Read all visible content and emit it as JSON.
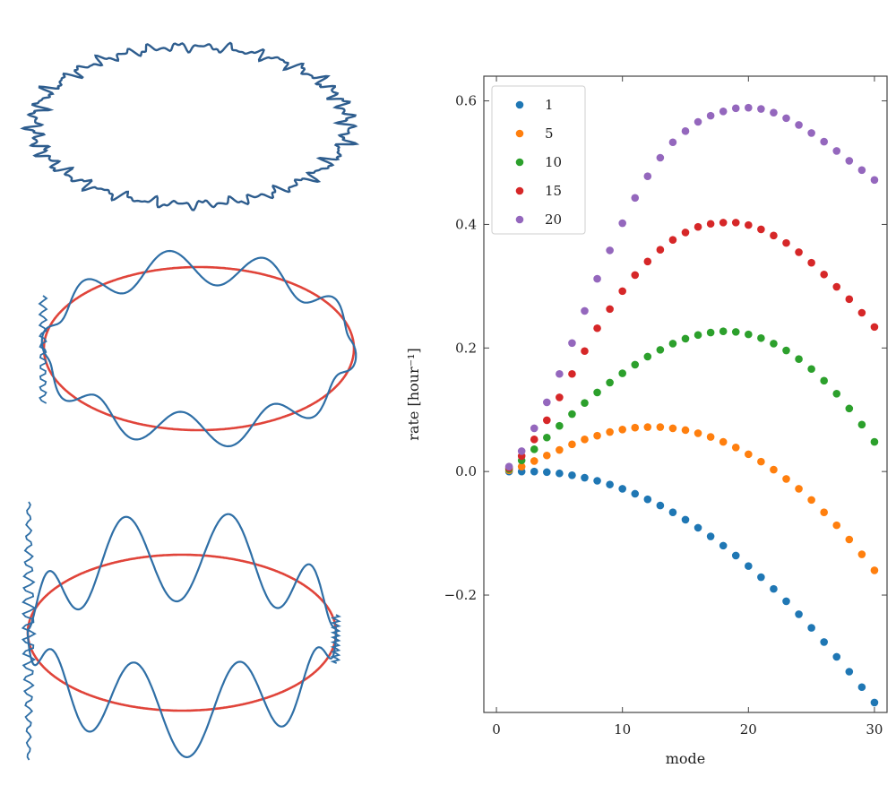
{
  "panels_left": [
    {
      "kind": "ellipse-noisy",
      "colors": {
        "wave": "#2e5d8e",
        "base": "#c0392b"
      }
    },
    {
      "kind": "ellipse-wavy",
      "colors": {
        "wave": "#2f6fa6",
        "base": "#e0443a"
      }
    },
    {
      "kind": "ellipse-large-wavy",
      "colors": {
        "wave": "#2f6fa6",
        "base": "#e0443a"
      }
    }
  ],
  "chart_data": {
    "type": "scatter",
    "xlabel": "mode",
    "ylabel": "rate  [hour⁻¹]",
    "xlim": [
      -1,
      31
    ],
    "ylim": [
      -0.39,
      0.64
    ],
    "xticks": [
      0,
      10,
      20,
      30
    ],
    "yticks": [
      -0.2,
      0.0,
      0.2,
      0.4,
      0.6
    ],
    "ytick_labels": [
      "−0.2",
      "0.0",
      "0.2",
      "0.4",
      "0.6"
    ],
    "legend_position": "top-left",
    "x": [
      1,
      2,
      3,
      4,
      5,
      6,
      7,
      8,
      9,
      10,
      11,
      12,
      13,
      14,
      15,
      16,
      17,
      18,
      19,
      20,
      21,
      22,
      23,
      24,
      25,
      26,
      27,
      28,
      29,
      30
    ],
    "series": [
      {
        "name": "1",
        "color": "#1f77b4",
        "values": [
          0.0,
          0.0,
          0.0,
          -0.001,
          -0.003,
          -0.006,
          -0.01,
          -0.015,
          -0.021,
          -0.028,
          -0.036,
          -0.045,
          -0.055,
          -0.066,
          -0.078,
          -0.091,
          -0.105,
          -0.12,
          -0.136,
          -0.153,
          -0.171,
          -0.19,
          -0.21,
          -0.231,
          -0.253,
          -0.276,
          -0.3,
          -0.324,
          -0.349,
          -0.374
        ]
      },
      {
        "name": "5",
        "color": "#ff7f0e",
        "values": [
          0.002,
          0.008,
          0.017,
          0.026,
          0.035,
          0.044,
          0.052,
          0.058,
          0.064,
          0.068,
          0.071,
          0.072,
          0.072,
          0.07,
          0.067,
          0.062,
          0.056,
          0.048,
          0.039,
          0.028,
          0.016,
          0.003,
          -0.012,
          -0.028,
          -0.046,
          -0.066,
          -0.087,
          -0.11,
          -0.134,
          -0.16
        ]
      },
      {
        "name": "10",
        "color": "#2ca02c",
        "values": [
          0.004,
          0.018,
          0.036,
          0.055,
          0.074,
          0.093,
          0.111,
          0.128,
          0.144,
          0.159,
          0.173,
          0.186,
          0.197,
          0.207,
          0.215,
          0.221,
          0.225,
          0.227,
          0.226,
          0.222,
          0.216,
          0.207,
          0.196,
          0.182,
          0.166,
          0.147,
          0.126,
          0.102,
          0.076,
          0.048
        ]
      },
      {
        "name": "15",
        "color": "#d62728",
        "values": [
          0.006,
          0.025,
          0.052,
          0.083,
          0.12,
          0.158,
          0.195,
          0.232,
          0.263,
          0.292,
          0.318,
          0.34,
          0.359,
          0.375,
          0.387,
          0.396,
          0.401,
          0.403,
          0.403,
          0.399,
          0.392,
          0.382,
          0.37,
          0.355,
          0.338,
          0.319,
          0.299,
          0.279,
          0.257,
          0.234
        ]
      },
      {
        "name": "20",
        "color": "#9467bd",
        "values": [
          0.008,
          0.033,
          0.07,
          0.112,
          0.158,
          0.208,
          0.26,
          0.312,
          0.358,
          0.402,
          0.443,
          0.478,
          0.508,
          0.533,
          0.551,
          0.566,
          0.576,
          0.583,
          0.588,
          0.589,
          0.587,
          0.581,
          0.572,
          0.561,
          0.548,
          0.534,
          0.519,
          0.503,
          0.488,
          0.472
        ]
      }
    ]
  }
}
